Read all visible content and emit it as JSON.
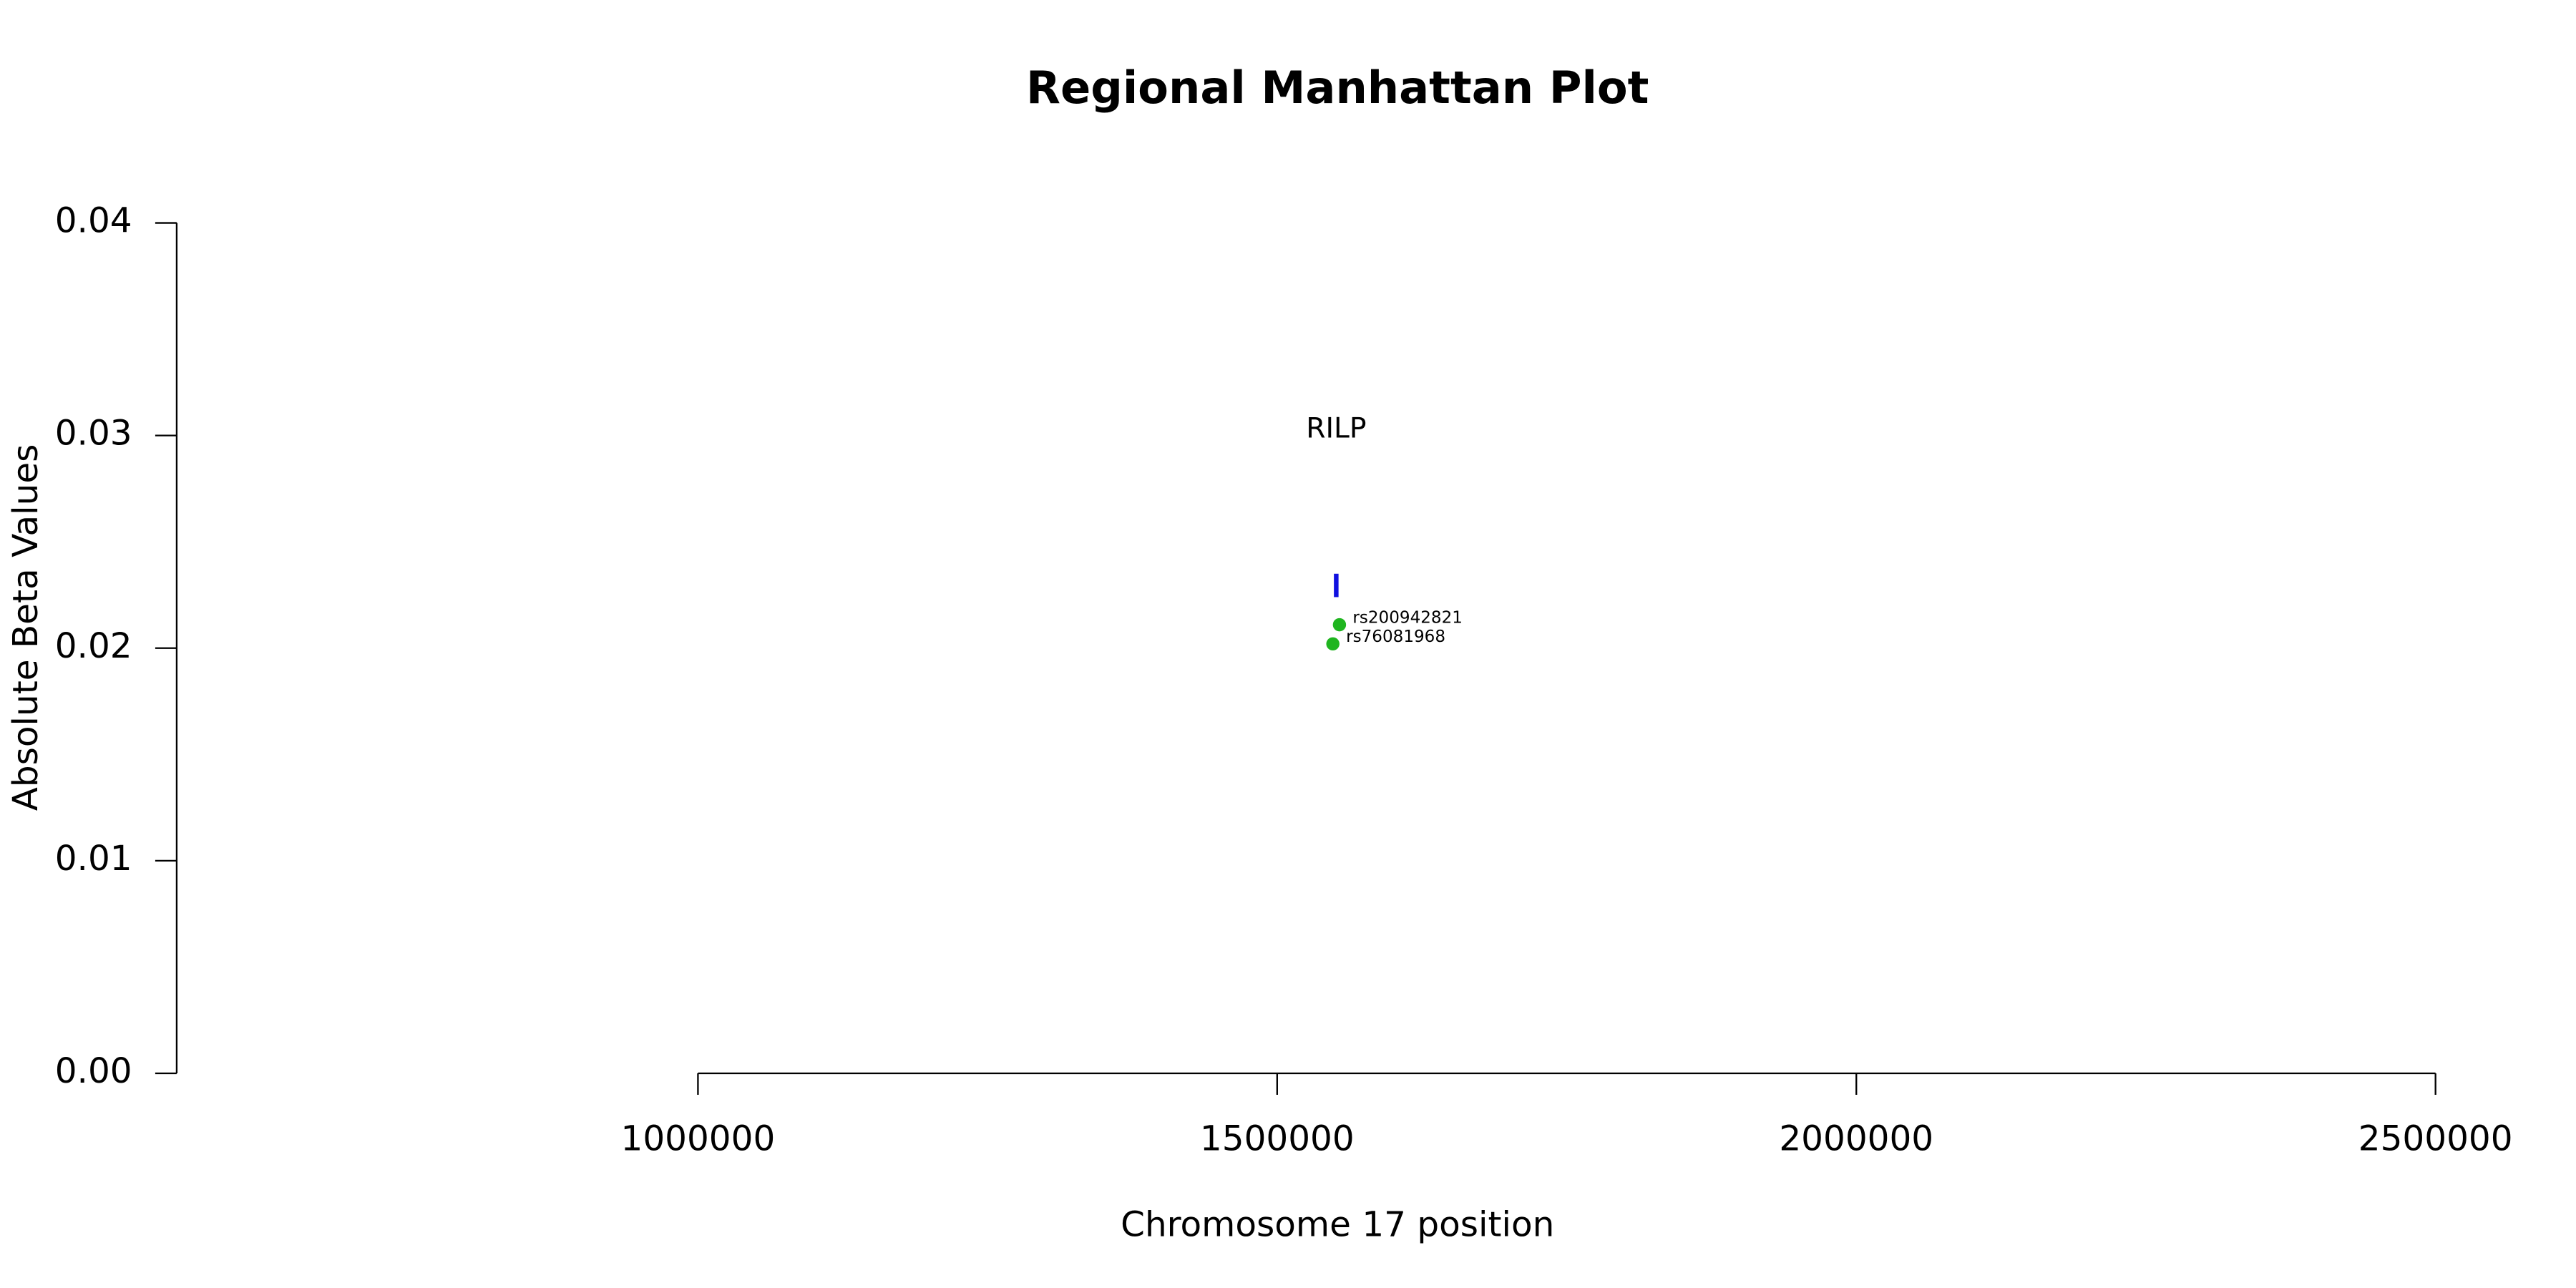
{
  "chart_data": {
    "type": "scatter",
    "title": "Regional Manhattan Plot",
    "x_label": "Chromosome 17 position",
    "y_label": "Absolute Beta Values",
    "xlim": [
      550000,
      2550000
    ],
    "ylim": [
      0,
      0.04
    ],
    "xticks": [
      1000000,
      1500000,
      2000000,
      2500000
    ],
    "yticks": [
      {
        "value": 0,
        "label": "0.00"
      },
      0.01,
      0.02,
      0.03,
      0.04
    ],
    "x": [
      1553800,
      1548100
    ],
    "values": [
      0.0211,
      0.0202
    ],
    "point_labels": [
      "rs200942821",
      "rs76081968"
    ],
    "color": "#1fb51f",
    "genes": [
      {
        "label": "RILP",
        "start": 1549000,
        "end": 1553000,
        "ymin": 0.0224,
        "ymax": 0.0235,
        "color": "#1010e0"
      }
    ]
  }
}
